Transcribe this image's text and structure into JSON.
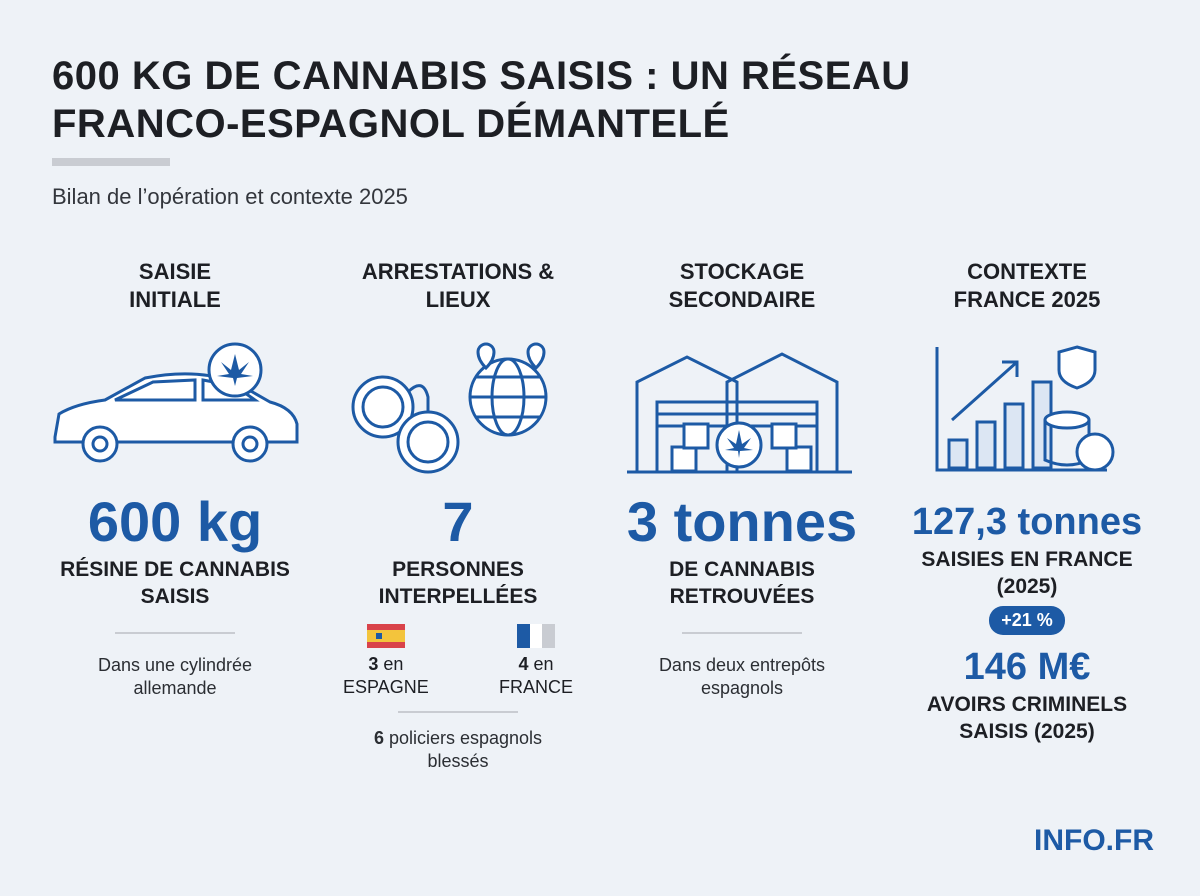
{
  "header": {
    "title": "600 KG DE CANNABIS SAISIS : UN RÉSEAU FRANCO-ESPAGNOL DÉMANTELÉ",
    "subtitle": "Bilan de l’opération et contexte 2025"
  },
  "columns": [
    {
      "heading": "SAISIE INITIALE",
      "value": "600 kg",
      "label": "RÉSINE DE CANNABIS SAISIS",
      "note": "Dans une cylindrée allemande"
    },
    {
      "heading": "ARRESTATIONS & LIEUX",
      "value": "7",
      "label": "PERSONNES INTERPELLÉES",
      "breakdown": [
        {
          "count": "3",
          "unit": "en",
          "country": "ESPAGNE"
        },
        {
          "count": "4",
          "unit": "en",
          "country": "FRANCE"
        }
      ],
      "injured": {
        "count": "6",
        "text": "policiers espagnols blessés"
      }
    },
    {
      "heading": "STOCKAGE SECONDAIRE",
      "value": "3 tonnes",
      "label": "DE CANNABIS RETROUVÉES",
      "note": "Dans deux entrepôts espagnols"
    },
    {
      "heading": "CONTEXTE FRANCE 2025",
      "value": "127,3 tonnes",
      "label": "SAISIES EN FRANCE (2025)",
      "badge": "+21 %",
      "value2": "146 M€",
      "label2": "AVOIRS CRIMINELS SAISIS (2025)"
    }
  ],
  "footer": {
    "brand": "INFO.FR"
  }
}
